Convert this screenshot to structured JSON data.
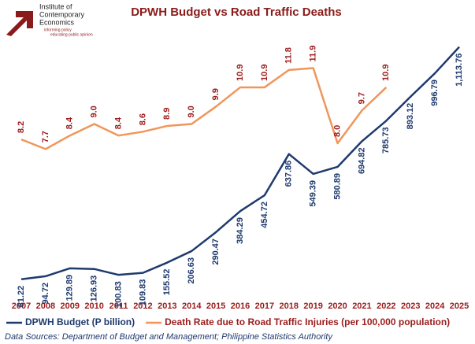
{
  "logo": {
    "name_lines": [
      "Institute of",
      "Contemporary",
      "Economics"
    ],
    "tagline_lines": [
      "informing policy",
      "educating public opinion"
    ]
  },
  "chart_data": {
    "type": "line",
    "title": "DPWH Budget vs Road Traffic Deaths",
    "categories": [
      "2007",
      "2008",
      "2009",
      "2010",
      "2011",
      "2012",
      "2013",
      "2014",
      "2015",
      "2016",
      "2017",
      "2018",
      "2019",
      "2020",
      "2021",
      "2022",
      "2023",
      "2024",
      "2025"
    ],
    "series": [
      {
        "name": "DPWH Budget (P billion)",
        "color": "#1f3a6e",
        "axis": "y",
        "values": [
          81.22,
          94.72,
          129.89,
          126.93,
          100.83,
          109.83,
          155.52,
          206.63,
          290.47,
          384.29,
          454.72,
          637.86,
          549.39,
          580.89,
          694.82,
          785.73,
          893.12,
          996.79,
          1113.76
        ],
        "value_labels": [
          "81.22",
          "94.72",
          "129.89",
          "126.93",
          "100.83",
          "109.83",
          "155.52",
          "206.63",
          "290.47",
          "384.29",
          "454.72",
          "637.86",
          "549.39",
          "580.89",
          "694.82",
          "785.73",
          "893.12",
          "996.79",
          "1,113.76"
        ]
      },
      {
        "name": "Death Rate due to Road Traffic Injuries (per 100,000 population)",
        "color": "#f0965a",
        "label_color": "#9b1c1c",
        "axis": "y2",
        "values": [
          8.2,
          7.7,
          8.4,
          9.0,
          8.4,
          8.6,
          8.9,
          9.0,
          9.9,
          10.9,
          10.9,
          11.8,
          11.9,
          8.0,
          9.7,
          10.9,
          null,
          null,
          null
        ],
        "value_labels": [
          "8.2",
          "7.7",
          "8.4",
          "9.0",
          "8.4",
          "8.6",
          "8.9",
          "9.0",
          "9.9",
          "10.9",
          "10.9",
          "11.8",
          "11.9",
          "8.0",
          "9.7",
          "10.9",
          null,
          null,
          null
        ]
      }
    ],
    "ylim": [
      0,
      1200
    ],
    "y2lim": [
      0,
      14
    ],
    "grid": false,
    "legend": "bottom",
    "source": "Data Sources: Department of Budget and Management; Philippine Statistics Authority"
  }
}
